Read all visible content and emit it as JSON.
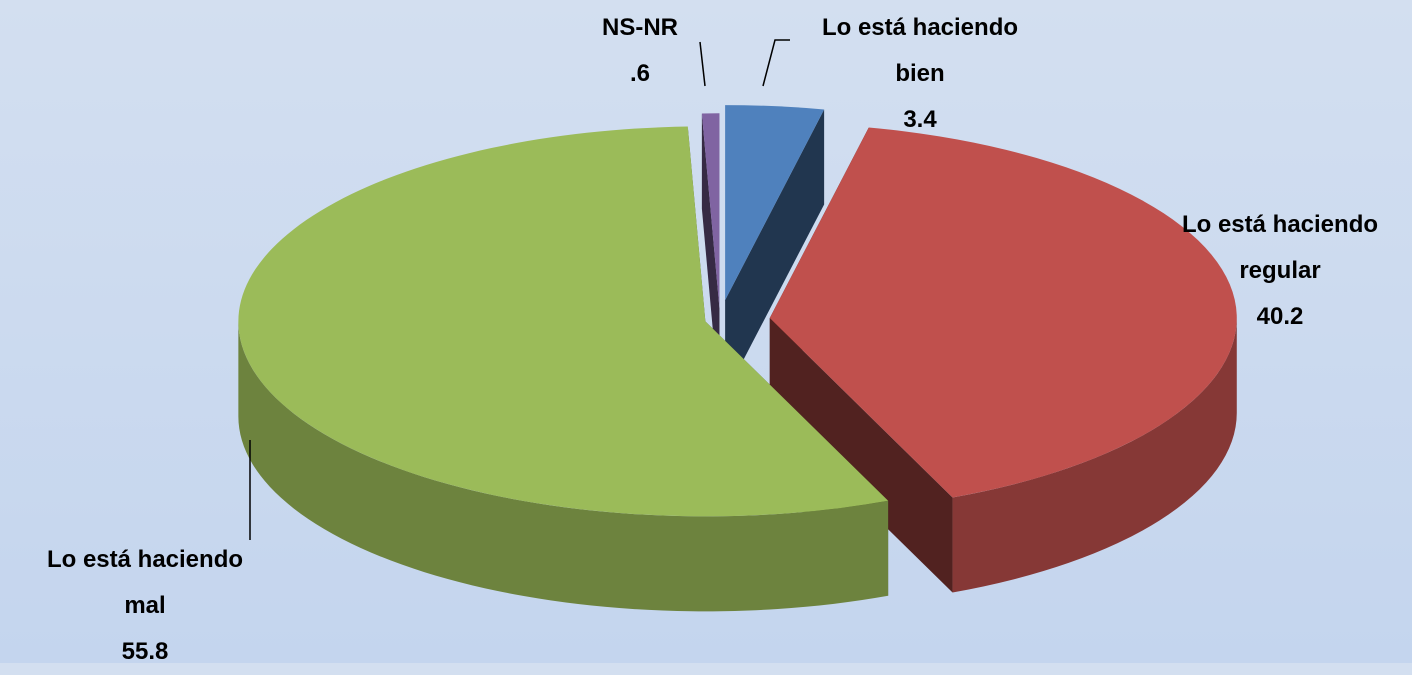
{
  "chart_data": {
    "type": "pie3d",
    "categories": [
      "Lo está haciendo bien",
      "Lo está haciendo regular",
      "Lo está haciendo mal",
      "NS-NR"
    ],
    "values": [
      3.4,
      40.2,
      55.8,
      0.6
    ],
    "value_labels": [
      "3.4",
      "40.2",
      "55.8",
      ".6"
    ],
    "colors": [
      "#4f81bd",
      "#c0504d",
      "#9bbb59",
      "#8064a2"
    ]
  }
}
